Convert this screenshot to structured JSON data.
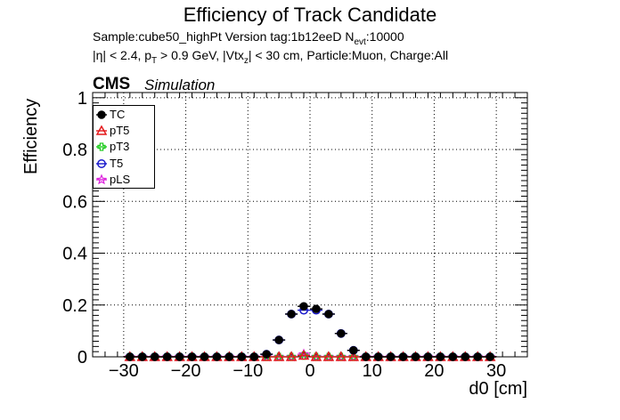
{
  "header": {
    "title": "Efficiency of Track Candidate",
    "line1_a": "Sample:cube50_highPt   Version tag:1b12eeD  N",
    "line1_sub": "evt",
    "line1_b": ":10000",
    "line2_a": "|η| < 2.4, p",
    "line2_sub1": "T",
    "line2_b": " > 0.9 GeV, |Vtx",
    "line2_sub2": "z",
    "line2_c": "| < 30 cm, Particle:Muon, Charge:All",
    "cms": "CMS",
    "simulation": "Simulation"
  },
  "chart_data": {
    "type": "scatter",
    "xlabel": "d0 [cm]",
    "ylabel": "Efficiency",
    "xlim": [
      -35,
      35
    ],
    "ylim": [
      0,
      1.02
    ],
    "grid": true,
    "legend_position": "top-left",
    "x_ticks": [
      -30,
      -20,
      -10,
      0,
      10,
      20,
      30
    ],
    "y_ticks": [
      0,
      0.2,
      0.4,
      0.6,
      0.8,
      1
    ],
    "x_tick_labels": [
      "−30",
      "−20",
      "−10",
      "0",
      "10",
      "20",
      "30"
    ],
    "y_tick_labels": [
      "0",
      "0.2",
      "0.4",
      "0.6",
      "0.8",
      "1"
    ],
    "bin_half_width": 1,
    "x": [
      -29,
      -27,
      -25,
      -23,
      -21,
      -19,
      -17,
      -15,
      -13,
      -11,
      -9,
      -7,
      -5,
      -3,
      -1,
      1,
      3,
      5,
      7,
      9,
      11,
      13,
      15,
      17,
      19,
      21,
      23,
      25,
      27,
      29
    ],
    "series": [
      {
        "name": "TC",
        "color": "#000000",
        "marker": "filled-circle",
        "values": [
          0,
          0,
          0,
          0,
          0,
          0,
          0,
          0,
          0,
          0,
          0,
          0.01,
          0.065,
          0.165,
          0.195,
          0.185,
          0.165,
          0.09,
          0.025,
          0,
          0,
          0,
          0,
          0,
          0,
          0,
          0,
          0,
          0,
          0
        ]
      },
      {
        "name": "pT5",
        "color": "#e41a1c",
        "marker": "open-triangle",
        "values": [
          0,
          0,
          0,
          0,
          0,
          0,
          0,
          0,
          0,
          0,
          0,
          0,
          0,
          0,
          0.005,
          0,
          0,
          0,
          0,
          0,
          0,
          0,
          0,
          0,
          0,
          0,
          0,
          0,
          0,
          0
        ]
      },
      {
        "name": "pT3",
        "color": "#22cc22",
        "marker": "open-cross",
        "values": [
          0,
          0,
          0,
          0,
          0,
          0,
          0,
          0,
          0,
          0,
          0,
          0,
          0,
          0,
          0.005,
          0,
          0,
          0,
          0,
          0,
          0,
          0,
          0,
          0,
          0,
          0,
          0,
          0,
          0,
          0
        ]
      },
      {
        "name": "T5",
        "color": "#1a1acc",
        "marker": "open-circle",
        "values": [
          0,
          0,
          0,
          0,
          0,
          0,
          0,
          0,
          0,
          0,
          0,
          0.01,
          0.065,
          0.165,
          0.18,
          0.18,
          0.165,
          0.09,
          0.025,
          0,
          0,
          0,
          0,
          0,
          0,
          0,
          0,
          0,
          0,
          0
        ]
      },
      {
        "name": "pLS",
        "color": "#dd22dd",
        "marker": "open-star",
        "values": [
          0,
          0,
          0,
          0,
          0,
          0,
          0,
          0,
          0,
          0,
          0,
          0,
          0,
          0,
          0.01,
          0,
          0,
          0,
          0,
          0,
          0,
          0,
          0,
          0,
          0,
          0,
          0,
          0,
          0,
          0
        ]
      }
    ]
  }
}
